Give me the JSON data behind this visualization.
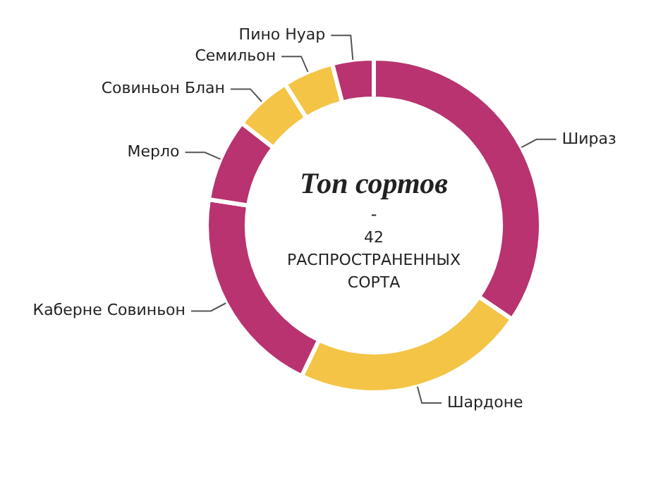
{
  "chart_data": {
    "type": "donut",
    "title": "Топ сортов",
    "subtitle": "42 РАСПРОСТРАНЕННЫХ СОРТА",
    "annotations": [
      "-"
    ],
    "categories": [
      "Шираз",
      "Шардоне",
      "Каберне Совиньон",
      "Мерло",
      "Совиньон Блан",
      "Семильон",
      "Пино Нуар"
    ],
    "values": [
      34.5,
      22.6,
      20.4,
      8,
      5.6,
      4.9,
      4
    ],
    "colors": [
      "#b8336f",
      "#f4c446",
      "#b8336f",
      "#b8336f",
      "#f4c446",
      "#f4c446",
      "#b8336f"
    ],
    "legend": false
  }
}
